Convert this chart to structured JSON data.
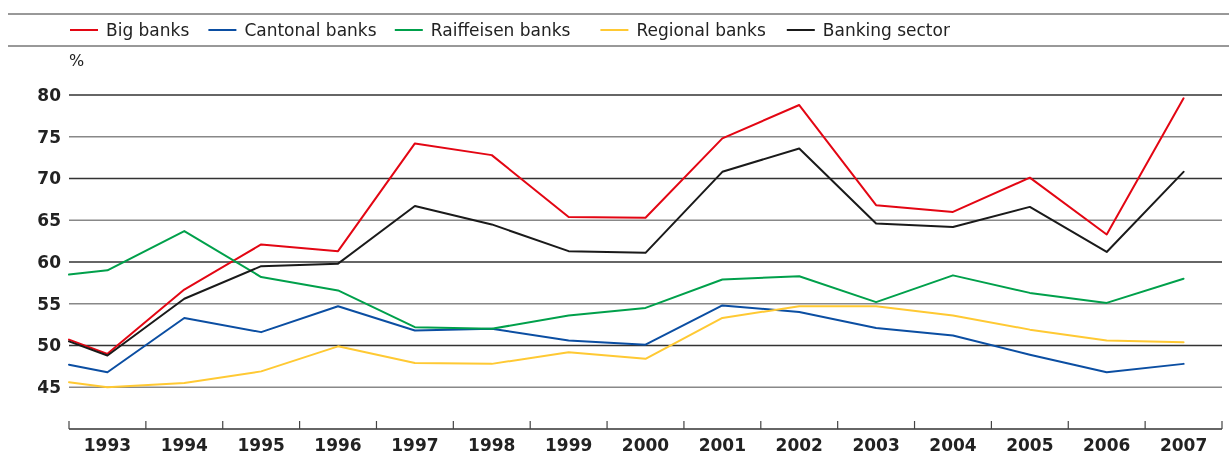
{
  "chart_data": {
    "type": "line",
    "ylabel": "%",
    "x": [
      1992.5,
      1993,
      1994,
      1995,
      1996,
      1997,
      1998,
      1999,
      2000,
      2001,
      2002,
      2003,
      2004,
      2005,
      2006,
      2007
    ],
    "xlim": [
      1992.5,
      2007.5
    ],
    "xticks": [
      {
        "value": 1992.5,
        "label": null
      },
      {
        "value": 1993,
        "label": "1993"
      },
      {
        "value": 1993.5,
        "label": null
      },
      {
        "value": 1994,
        "label": "1994"
      },
      {
        "value": 1994.5,
        "label": null
      },
      {
        "value": 1995,
        "label": "1995"
      },
      {
        "value": 1995.5,
        "label": null
      },
      {
        "value": 1996,
        "label": "1996"
      },
      {
        "value": 1996.5,
        "label": null
      },
      {
        "value": 1997,
        "label": "1997"
      },
      {
        "value": 1997.5,
        "label": null
      },
      {
        "value": 1998,
        "label": "1998"
      },
      {
        "value": 1998.5,
        "label": null
      },
      {
        "value": 1999,
        "label": "1999"
      },
      {
        "value": 1999.5,
        "label": null
      },
      {
        "value": 2000,
        "label": "2000"
      },
      {
        "value": 2000.5,
        "label": null
      },
      {
        "value": 2001,
        "label": "2001"
      },
      {
        "value": 2001.5,
        "label": null
      },
      {
        "value": 2002,
        "label": "2002"
      },
      {
        "value": 2002.5,
        "label": null
      },
      {
        "value": 2003,
        "label": "2003"
      },
      {
        "value": 2003.5,
        "label": null
      },
      {
        "value": 2004,
        "label": "2004"
      },
      {
        "value": 2004.5,
        "label": null
      },
      {
        "value": 2005,
        "label": "2005"
      },
      {
        "value": 2005.5,
        "label": null
      },
      {
        "value": 2006,
        "label": "2006"
      },
      {
        "value": 2006.5,
        "label": null
      },
      {
        "value": 2007,
        "label": "2007"
      },
      {
        "value": 2007.5,
        "label": null
      }
    ],
    "ylim": [
      40,
      80
    ],
    "yticks": [
      45,
      50,
      55,
      60,
      65,
      70,
      75,
      80
    ],
    "grid": "y",
    "legend": "top",
    "marker": "none",
    "line_style": "solid",
    "series": [
      {
        "name": "Big banks",
        "color": "#e30613",
        "values": [
          50.7,
          49.0,
          56.7,
          62.1,
          61.3,
          74.2,
          72.8,
          65.4,
          65.3,
          74.8,
          78.8,
          66.8,
          66.0,
          70.1,
          63.3,
          79.6
        ]
      },
      {
        "name": "Cantonal banks",
        "color": "#0b4ea2",
        "values": [
          47.7,
          46.8,
          53.3,
          51.6,
          54.7,
          51.8,
          52.0,
          50.6,
          50.1,
          54.8,
          54.0,
          52.1,
          51.2,
          48.9,
          46.8,
          47.8
        ]
      },
      {
        "name": "Raiffeisen banks",
        "color": "#00a04b",
        "values": [
          58.5,
          59.0,
          63.7,
          58.2,
          56.6,
          52.2,
          52.0,
          53.6,
          54.5,
          57.9,
          58.3,
          55.2,
          58.4,
          56.3,
          55.1,
          58.0
        ]
      },
      {
        "name": "Regional banks",
        "color": "#ffc933",
        "values": [
          45.6,
          45.0,
          45.5,
          46.9,
          49.9,
          47.9,
          47.8,
          49.2,
          48.4,
          53.3,
          54.7,
          54.7,
          53.6,
          51.9,
          50.6,
          50.4
        ]
      },
      {
        "name": "Banking sector",
        "color": "#1a1a1a",
        "values": [
          50.5,
          48.8,
          55.6,
          59.5,
          59.8,
          66.7,
          64.5,
          61.3,
          61.1,
          70.8,
          73.6,
          64.6,
          64.2,
          66.6,
          61.2,
          70.8
        ]
      }
    ]
  }
}
